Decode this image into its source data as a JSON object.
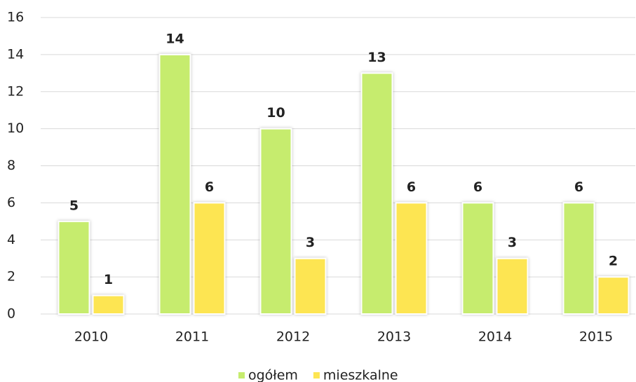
{
  "chart_data": {
    "type": "bar",
    "categories": [
      "2010",
      "2011",
      "2012",
      "2013",
      "2014",
      "2015"
    ],
    "series": [
      {
        "name": "ogółem",
        "color": "#c6ec6e",
        "values": [
          5,
          14,
          10,
          13,
          6,
          6
        ]
      },
      {
        "name": "mieszkalne",
        "color": "#fde552",
        "values": [
          1,
          6,
          3,
          6,
          3,
          2
        ]
      }
    ],
    "ylim": [
      0,
      16
    ],
    "yticks": [
      0,
      2,
      4,
      6,
      8,
      10,
      12,
      14,
      16
    ],
    "grid": true,
    "legend": "bottom"
  }
}
